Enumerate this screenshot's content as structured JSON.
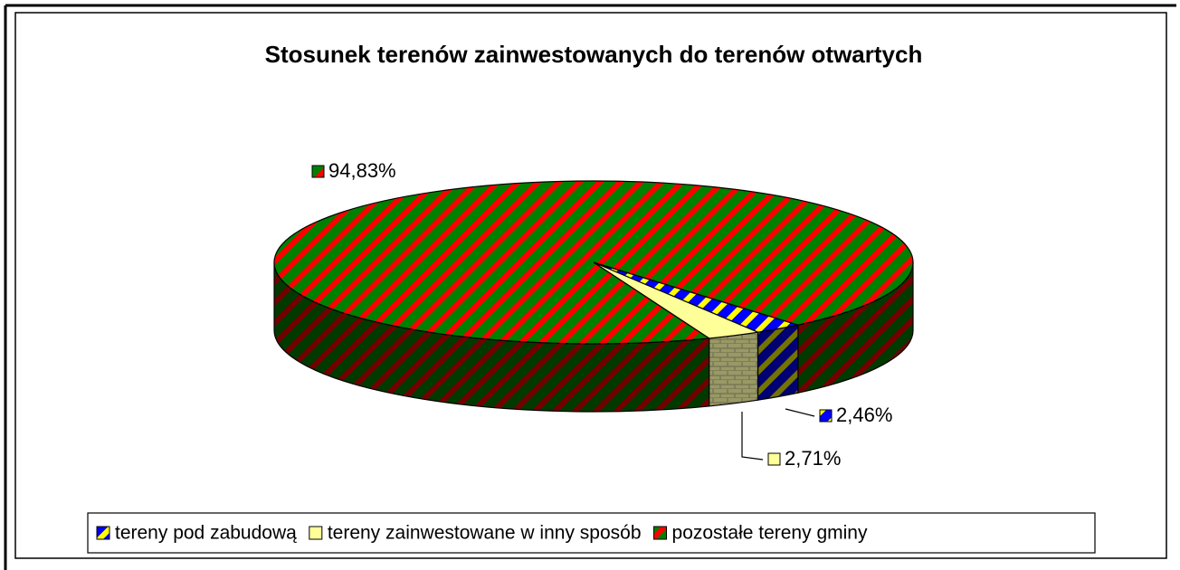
{
  "chart_data": {
    "type": "pie3d",
    "title": "Stosunek terenów zainwestowanych do terenów otwartych",
    "categories": [
      "tereny pod zabudową",
      "tereny zainwestowane w inny sposób",
      "pozostałe tereny gminy"
    ],
    "values": [
      2.46,
      2.71,
      94.83
    ],
    "value_labels": [
      "2,46%",
      "2,71%",
      "94,83%"
    ],
    "colors": [
      "#0000ff",
      "#ffff99",
      "#008000"
    ],
    "legend": "bottom"
  }
}
